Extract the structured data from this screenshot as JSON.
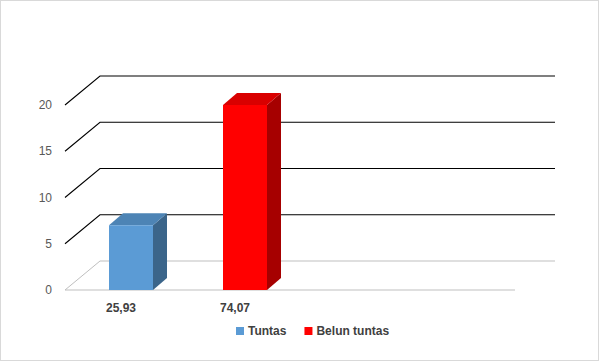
{
  "chart_data": {
    "type": "bar",
    "categories": [
      "25,93",
      "74,07"
    ],
    "series": [
      {
        "name": "Tuntas",
        "color": "#5b9bd5",
        "values": [
          7,
          null
        ]
      },
      {
        "name": "Belun tuntas",
        "color": "#ff0000",
        "values": [
          null,
          20
        ]
      }
    ],
    "ylim": [
      0,
      20
    ],
    "yticks": [
      0,
      5,
      10,
      15,
      20
    ],
    "grid": true,
    "legend": "bottom"
  }
}
